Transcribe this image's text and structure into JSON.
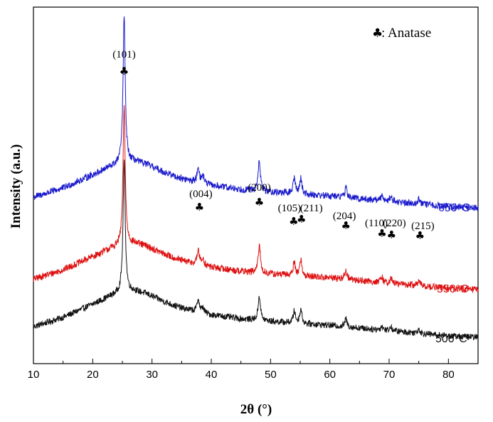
{
  "chart_data": {
    "type": "line",
    "xlabel": "2θ (°)",
    "ylabel": "Intensity (a.u.)",
    "xlim": [
      10,
      85
    ],
    "x_ticks": [
      10,
      20,
      30,
      40,
      50,
      60,
      70,
      80
    ],
    "y_ticks_shown": false,
    "grid": false,
    "legend": {
      "marker_symbol": "♣",
      "text": ": Anatase",
      "position": "top-right"
    },
    "series": [
      {
        "name": "650°C",
        "color": "#1a1acc",
        "baseline": 6.3,
        "background": [
          [
            10,
            0.0
          ],
          [
            15,
            0.35
          ],
          [
            20,
            0.85
          ],
          [
            23,
            1.15
          ],
          [
            25,
            1.3
          ],
          [
            27,
            1.35
          ],
          [
            29,
            1.25
          ],
          [
            32,
            0.95
          ],
          [
            35,
            0.7
          ],
          [
            40,
            0.45
          ],
          [
            45,
            0.3
          ],
          [
            50,
            0.2
          ],
          [
            55,
            0.12
          ],
          [
            60,
            0.05
          ],
          [
            65,
            -0.05
          ],
          [
            70,
            -0.15
          ],
          [
            75,
            -0.25
          ],
          [
            80,
            -0.35
          ],
          [
            85,
            -0.4
          ]
        ],
        "peaks": [
          [
            25.3,
            5.5
          ],
          [
            37.8,
            0.6
          ],
          [
            38.6,
            0.3
          ],
          [
            48.1,
            1.15
          ],
          [
            54.0,
            0.6
          ],
          [
            55.1,
            0.6
          ],
          [
            62.7,
            0.35
          ],
          [
            68.8,
            0.2
          ],
          [
            70.3,
            0.2
          ],
          [
            75.0,
            0.2
          ]
        ],
        "noise": 0.13
      },
      {
        "name": "550°C",
        "color": "#dd1111",
        "baseline": 3.2,
        "background": [
          [
            10,
            0.0
          ],
          [
            15,
            0.35
          ],
          [
            20,
            0.85
          ],
          [
            23,
            1.15
          ],
          [
            25,
            1.3
          ],
          [
            27,
            1.35
          ],
          [
            29,
            1.25
          ],
          [
            32,
            0.95
          ],
          [
            35,
            0.7
          ],
          [
            40,
            0.45
          ],
          [
            45,
            0.3
          ],
          [
            50,
            0.2
          ],
          [
            55,
            0.12
          ],
          [
            60,
            0.05
          ],
          [
            65,
            -0.05
          ],
          [
            70,
            -0.15
          ],
          [
            75,
            -0.25
          ],
          [
            80,
            -0.35
          ],
          [
            85,
            -0.4
          ]
        ],
        "peaks": [
          [
            25.3,
            5.2
          ],
          [
            37.8,
            0.55
          ],
          [
            38.6,
            0.25
          ],
          [
            48.1,
            1.05
          ],
          [
            54.0,
            0.5
          ],
          [
            55.1,
            0.6
          ],
          [
            62.7,
            0.35
          ],
          [
            68.8,
            0.18
          ],
          [
            70.3,
            0.18
          ],
          [
            75.0,
            0.2
          ]
        ],
        "noise": 0.13
      },
      {
        "name": "500°C",
        "color": "#111111",
        "baseline": 1.4,
        "background": [
          [
            10,
            0.0
          ],
          [
            15,
            0.35
          ],
          [
            20,
            0.85
          ],
          [
            23,
            1.15
          ],
          [
            25,
            1.3
          ],
          [
            27,
            1.35
          ],
          [
            29,
            1.25
          ],
          [
            32,
            0.95
          ],
          [
            35,
            0.7
          ],
          [
            40,
            0.45
          ],
          [
            45,
            0.3
          ],
          [
            50,
            0.2
          ],
          [
            55,
            0.12
          ],
          [
            60,
            0.05
          ],
          [
            65,
            -0.05
          ],
          [
            70,
            -0.15
          ],
          [
            75,
            -0.25
          ],
          [
            80,
            -0.35
          ],
          [
            85,
            -0.4
          ]
        ],
        "peaks": [
          [
            25.3,
            4.9
          ],
          [
            37.8,
            0.5
          ],
          [
            38.6,
            0.2
          ],
          [
            48.1,
            0.95
          ],
          [
            54.0,
            0.45
          ],
          [
            55.1,
            0.55
          ],
          [
            62.7,
            0.3
          ],
          [
            68.8,
            0.15
          ],
          [
            70.3,
            0.15
          ],
          [
            75.0,
            0.18
          ]
        ],
        "noise": 0.12
      }
    ],
    "annotations": [
      {
        "label": "(101)",
        "x": 25.3,
        "marker": "♣"
      },
      {
        "label": "(004)",
        "x": 38.0,
        "marker": "♣"
      },
      {
        "label": "(200)",
        "x": 48.1,
        "marker": "♣"
      },
      {
        "label": "(105)",
        "x": 53.9,
        "marker": "♣"
      },
      {
        "label": "(211)",
        "x": 55.2,
        "marker": "♣"
      },
      {
        "label": "(204)",
        "x": 62.7,
        "marker": "♣"
      },
      {
        "label": "(110)",
        "x": 68.8,
        "marker": "♣"
      },
      {
        "label": "(220)",
        "x": 70.4,
        "marker": "♣"
      },
      {
        "label": "(215)",
        "x": 75.2,
        "marker": "♣"
      }
    ]
  }
}
